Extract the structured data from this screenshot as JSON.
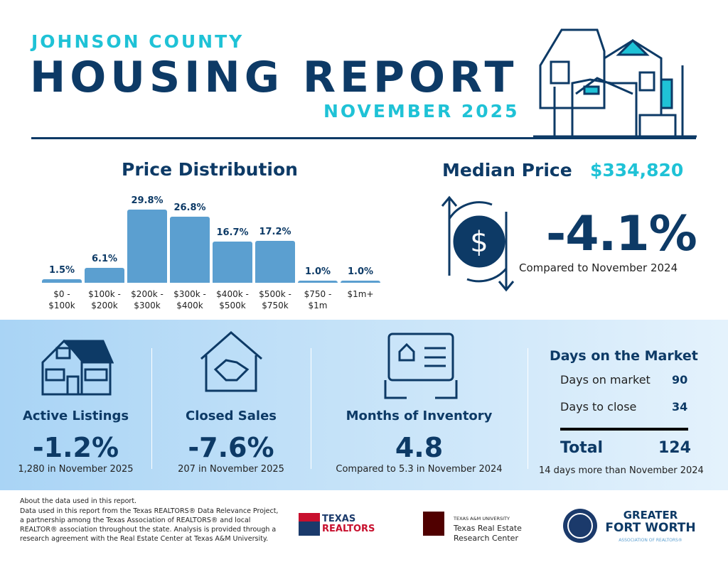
{
  "header": {
    "county": "JOHNSON COUNTY",
    "title": "HOUSING REPORT",
    "period": "NOVEMBER 2025"
  },
  "chart_data": {
    "type": "bar",
    "title": "Price Distribution",
    "categories": [
      "$0 - $100k",
      "$100k - $200k",
      "$200k - $300k",
      "$300k - $400k",
      "$400k - $500k",
      "$500k - $750k",
      "$750 - $1m",
      "$1m+"
    ],
    "values": [
      1.5,
      6.1,
      29.8,
      26.8,
      16.7,
      17.2,
      1.0,
      1.0
    ],
    "value_labels": [
      "1.5%",
      "6.1%",
      "29.8%",
      "26.8%",
      "16.7%",
      "17.2%",
      "1.0%",
      "1.0%"
    ],
    "color": "#5b9fd0"
  },
  "median": {
    "label": "Median Price",
    "price": "$334,820",
    "change": "-4.1%",
    "note": "Compared to November 2024"
  },
  "stats": [
    {
      "title": "Active Listings",
      "value": "-1.2%",
      "note": "1,280 in November 2025"
    },
    {
      "title": "Closed Sales",
      "value": "-7.6%",
      "note": "207 in November 2025"
    },
    {
      "title": "Months of Inventory",
      "value": "4.8",
      "note": "Compared to 5.3 in November 2024"
    }
  ],
  "days": {
    "title": "Days on the Market",
    "rows": [
      {
        "label": "Days on market",
        "value": 90
      },
      {
        "label": "Days to close",
        "value": 34
      }
    ],
    "total_label": "Total",
    "total": 124,
    "note": "14 days more than November 2024"
  },
  "footer": {
    "about": "About the data used in this report.",
    "text": "Data used in this report from the Texas REALTORS® Data Relevance Project, a partnership among the Texas Association of REALTORS® and local REALTOR® association throughout the state. Analysis is provided through a research agreement with the Real Estate Center at Texas A&M University.",
    "logos": [
      "TEXAS",
      "REALTORS",
      "TEXAS A&M UNIVERSITY",
      "Texas Real Estate",
      "Research Center",
      "GREATER",
      "FORT WORTH",
      "ASSOCIATION OF REALTORS®"
    ]
  }
}
